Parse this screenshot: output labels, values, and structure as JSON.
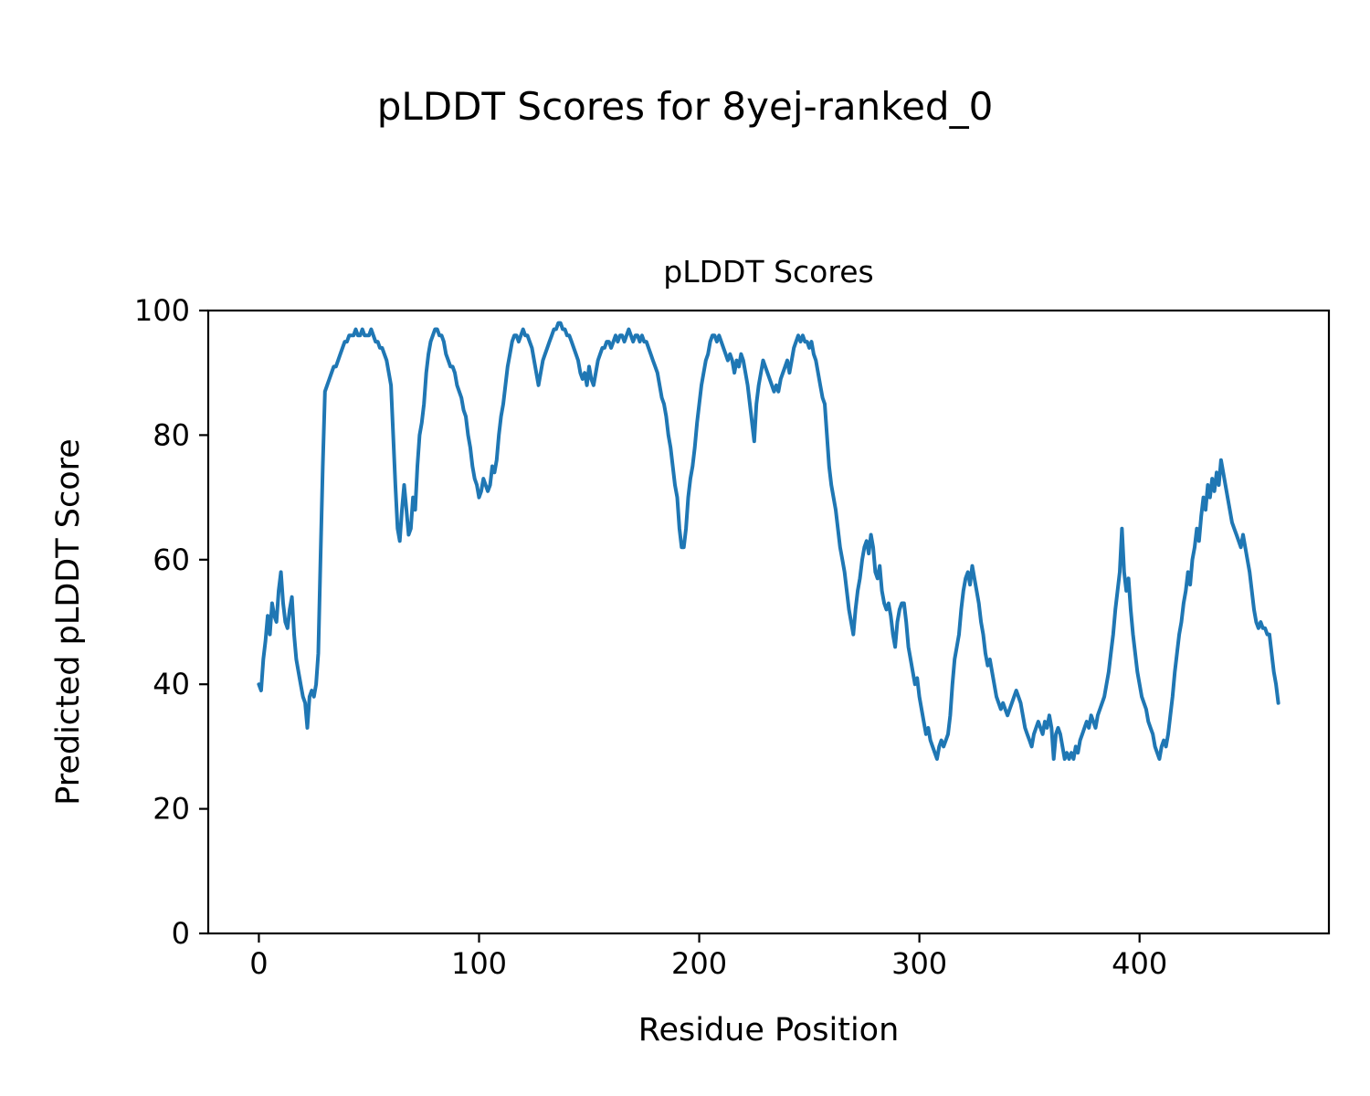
{
  "figure": {
    "suptitle": "pLDDT Scores for 8yej-ranked_0",
    "axes_title": "pLDDT Scores",
    "xlabel": "Residue Position",
    "ylabel": "Predicted pLDDT Score"
  },
  "chart_data": {
    "type": "line",
    "title": "pLDDT Scores",
    "xlabel": "Residue Position",
    "ylabel": "Predicted pLDDT Score",
    "xlim": [
      -23,
      486
    ],
    "ylim": [
      0,
      100
    ],
    "x_ticks": [
      0,
      100,
      200,
      300,
      400
    ],
    "y_ticks": [
      0,
      20,
      40,
      60,
      80,
      100
    ],
    "grid": false,
    "legend": "none",
    "line_color": "#1f77b4",
    "x_note": "x = residue position index, 0..463, one per y value",
    "y": [
      40,
      39,
      44,
      47,
      51,
      48,
      53,
      51,
      50,
      55,
      58,
      53,
      50,
      49,
      52,
      54,
      48,
      44,
      42,
      40,
      38,
      37,
      33,
      38,
      39,
      38,
      40,
      45,
      60,
      75,
      87,
      88,
      89,
      90,
      91,
      91,
      92,
      93,
      94,
      95,
      95,
      96,
      96,
      96,
      97,
      96,
      96,
      97,
      96,
      96,
      96,
      97,
      96,
      95,
      95,
      94,
      94,
      93,
      92,
      90,
      88,
      80,
      72,
      65,
      63,
      68,
      72,
      68,
      64,
      65,
      70,
      68,
      75,
      80,
      82,
      85,
      90,
      93,
      95,
      96,
      97,
      97,
      96,
      96,
      95,
      93,
      92,
      91,
      91,
      90,
      88,
      87,
      86,
      84,
      83,
      80,
      78,
      75,
      73,
      72,
      70,
      71,
      73,
      72,
      71,
      72,
      75,
      74,
      76,
      80,
      83,
      85,
      88,
      91,
      93,
      95,
      96,
      96,
      95,
      96,
      97,
      96,
      96,
      95,
      94,
      92,
      90,
      88,
      90,
      92,
      93,
      94,
      95,
      96,
      97,
      97,
      98,
      98,
      97,
      97,
      96,
      96,
      95,
      94,
      93,
      92,
      90,
      89,
      90,
      88,
      91,
      89,
      88,
      90,
      92,
      93,
      94,
      94,
      95,
      95,
      94,
      95,
      96,
      95,
      96,
      96,
      95,
      96,
      97,
      96,
      95,
      96,
      96,
      95,
      96,
      95,
      95,
      94,
      93,
      92,
      91,
      90,
      88,
      86,
      85,
      83,
      80,
      78,
      75,
      72,
      70,
      65,
      62,
      62,
      65,
      70,
      73,
      75,
      78,
      82,
      85,
      88,
      90,
      92,
      93,
      95,
      96,
      96,
      95,
      96,
      95,
      94,
      93,
      92,
      93,
      92,
      90,
      92,
      91,
      93,
      92,
      90,
      88,
      85,
      82,
      79,
      85,
      88,
      90,
      92,
      91,
      90,
      89,
      88,
      87,
      88,
      87,
      89,
      90,
      91,
      92,
      90,
      92,
      94,
      95,
      96,
      95,
      96,
      95,
      95,
      94,
      95,
      93,
      92,
      90,
      88,
      86,
      85,
      80,
      75,
      72,
      70,
      68,
      65,
      62,
      60,
      58,
      55,
      52,
      50,
      48,
      52,
      55,
      57,
      60,
      62,
      63,
      61,
      64,
      62,
      58,
      57,
      59,
      55,
      53,
      52,
      53,
      51,
      48,
      46,
      50,
      52,
      53,
      53,
      50,
      46,
      44,
      42,
      40,
      41,
      38,
      36,
      34,
      32,
      33,
      31,
      30,
      29,
      28,
      30,
      31,
      30,
      31,
      32,
      35,
      40,
      44,
      46,
      48,
      52,
      55,
      57,
      58,
      56,
      59,
      57,
      55,
      53,
      50,
      48,
      45,
      43,
      44,
      42,
      40,
      38,
      37,
      36,
      37,
      36,
      35,
      36,
      37,
      38,
      39,
      38,
      37,
      35,
      33,
      32,
      31,
      30,
      32,
      33,
      34,
      33,
      32,
      34,
      33,
      35,
      33,
      28,
      32,
      33,
      32,
      30,
      28,
      29,
      28,
      29,
      28,
      30,
      29,
      31,
      32,
      33,
      34,
      33,
      35,
      34,
      33,
      35,
      36,
      37,
      38,
      40,
      42,
      45,
      48,
      52,
      55,
      58,
      65,
      58,
      55,
      57,
      52,
      48,
      45,
      42,
      40,
      38,
      37,
      36,
      34,
      33,
      32,
      30,
      29,
      28,
      30,
      31,
      30,
      32,
      35,
      38,
      42,
      45,
      48,
      50,
      53,
      55,
      58,
      56,
      60,
      62,
      65,
      63,
      67,
      70,
      68,
      72,
      70,
      73,
      71,
      74,
      72,
      76,
      74,
      72,
      70,
      68,
      66,
      65,
      64,
      63,
      62,
      64,
      62,
      60,
      58,
      55,
      52,
      50,
      49,
      50,
      49,
      49,
      48,
      48,
      45,
      42,
      40,
      37
    ]
  }
}
